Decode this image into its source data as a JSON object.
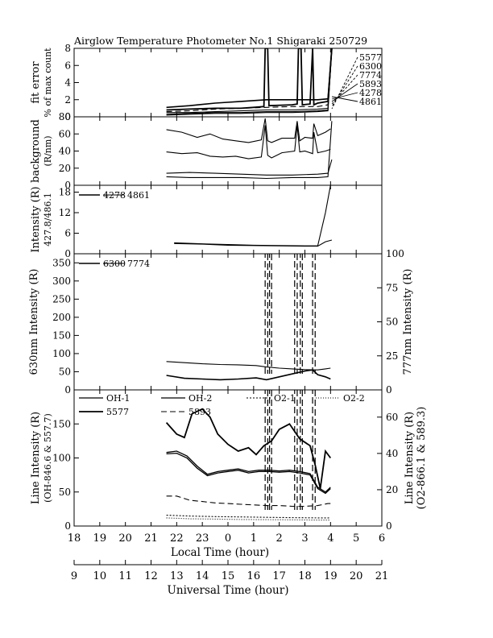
{
  "title": "Airglow Temperature Photometer No.1  Shigaraki  250729",
  "colors": {
    "ink": "#000000",
    "background": "#ffffff"
  },
  "chart_data": [
    {
      "type": "line",
      "id": "fit",
      "ylabel": [
        "fit error",
        "% of max count"
      ],
      "ylim": [
        0,
        8
      ],
      "yticks": [
        0,
        2,
        4,
        6,
        8
      ],
      "legend": [
        "5577",
        "6300",
        "7774",
        "5893",
        "4278",
        "4861"
      ],
      "series": [
        {
          "name": "5577",
          "x": [
            12.6,
            13.5,
            14.5,
            15.5,
            16,
            16.4,
            16.45,
            16.55,
            16.6,
            17.5,
            17.7,
            17.75,
            17.85,
            17.9,
            18.2,
            18.3,
            18.35,
            18.5,
            18.9,
            19.05
          ],
          "y": [
            0.8,
            0.9,
            1.0,
            1.0,
            1.1,
            1.2,
            8,
            8,
            1.3,
            1.4,
            1.5,
            8,
            8,
            1.4,
            1.5,
            8,
            1.4,
            1.6,
            1.8,
            8
          ]
        },
        {
          "name": "6300",
          "x": [
            12.6,
            13.5,
            14.5,
            15.5,
            16.5,
            17.5,
            18.5,
            18.9,
            19.05
          ],
          "y": [
            0.3,
            0.4,
            0.5,
            0.5,
            0.6,
            0.6,
            0.7,
            0.8,
            8
          ]
        },
        {
          "name": "7774",
          "x": [
            12.6,
            13.5,
            14.5,
            15.5,
            16.5,
            17.5,
            18.5,
            18.9,
            19.05
          ],
          "y": [
            1.1,
            1.3,
            1.6,
            1.8,
            2.0,
            2.0,
            2.0,
            2.1,
            8
          ]
        },
        {
          "name": "5893",
          "x": [
            12.6,
            13.5,
            14.5,
            15.5,
            16.5,
            17.5,
            18.5,
            18.9,
            19.05
          ],
          "y": [
            0.6,
            0.7,
            0.9,
            1.0,
            1.1,
            1.2,
            1.2,
            1.4,
            8
          ]
        },
        {
          "name": "4278",
          "x": [
            12.6,
            13.5,
            14.5,
            15.5,
            16.5,
            17.5,
            18.5,
            18.9,
            19.05
          ],
          "y": [
            0.2,
            0.3,
            0.4,
            0.4,
            0.5,
            0.5,
            0.6,
            0.7,
            8
          ]
        },
        {
          "name": "4861",
          "x": [
            12.6,
            13.5,
            14.5,
            15.5,
            16.5,
            17.5,
            18.5,
            18.9,
            19.05
          ],
          "y": [
            0.5,
            0.5,
            0.6,
            0.7,
            0.8,
            0.8,
            0.9,
            1.0,
            8
          ]
        }
      ]
    },
    {
      "type": "line",
      "id": "background",
      "ylabel": [
        "background",
        "(R/nm)"
      ],
      "ylim": [
        0,
        80
      ],
      "yticks": [
        0,
        20,
        40,
        60,
        80
      ],
      "series": [
        {
          "x": [
            12.6,
            13.2,
            13.8,
            14.3,
            14.8,
            15.3,
            15.8,
            16.3,
            16.45,
            16.55,
            16.7,
            17.1,
            17.6,
            17.7,
            17.8,
            18.0,
            18.3,
            18.35,
            18.5,
            18.8,
            19.0
          ],
          "y": [
            65,
            62,
            56,
            60,
            54,
            52,
            50,
            53,
            78,
            52,
            50,
            55,
            55,
            75,
            52,
            56,
            55,
            72,
            58,
            62,
            66
          ]
        },
        {
          "x": [
            12.6,
            13.2,
            13.8,
            14.3,
            14.8,
            15.3,
            15.8,
            16.3,
            16.45,
            16.55,
            16.7,
            17.1,
            17.6,
            17.7,
            17.8,
            18.0,
            18.3,
            18.35,
            18.5,
            18.8,
            19.0
          ],
          "y": [
            39,
            37,
            38,
            34,
            33,
            34,
            31,
            33,
            70,
            35,
            32,
            38,
            40,
            70,
            39,
            40,
            37,
            62,
            38,
            40,
            42
          ]
        },
        {
          "x": [
            12.6,
            13.5,
            14.5,
            15.5,
            16.5,
            17.5,
            18.5,
            18.9,
            19.05
          ],
          "y": [
            14,
            15,
            14,
            13,
            12,
            12,
            13,
            14,
            30
          ]
        },
        {
          "x": [
            12.6,
            13.5,
            14.5,
            15.5,
            16.5,
            17.5,
            18.5,
            18.9,
            19.05
          ],
          "y": [
            10,
            9,
            9,
            9,
            8,
            9,
            9,
            10,
            75
          ]
        }
      ]
    },
    {
      "type": "line",
      "id": "intensity-blue",
      "ylabel": [
        "Intensity (R)",
        "427.8/486.1"
      ],
      "ylim": [
        0,
        20
      ],
      "yticks": [
        0,
        6,
        12,
        18
      ],
      "legend": [
        "4278",
        "4861"
      ],
      "series": [
        {
          "name": "4278",
          "x": [
            12.9,
            14.0,
            15.0,
            16.0,
            17.0,
            18.0,
            18.5,
            18.8,
            19.05
          ],
          "y": [
            3.0,
            2.8,
            2.5,
            2.4,
            2.3,
            2.2,
            2.2,
            3.5,
            4.0
          ]
        },
        {
          "name": "4861",
          "x": [
            12.9,
            14.0,
            15.0,
            16.0,
            17.0,
            18.0,
            18.5,
            18.8,
            19.0
          ],
          "y": [
            3.2,
            2.9,
            2.7,
            2.5,
            2.4,
            2.3,
            2.3,
            12.0,
            20
          ]
        }
      ]
    },
    {
      "type": "line",
      "id": "intensity-red",
      "ylabel": "630nm Intensity (R)",
      "ylabel_right": "777nm Intensity (R)",
      "ylim": [
        0,
        375
      ],
      "ylim_right": [
        0,
        100
      ],
      "yticks": [
        0,
        50,
        100,
        150,
        200,
        250,
        300,
        350
      ],
      "yticks_right": [
        0,
        25,
        50,
        75,
        100
      ],
      "legend": [
        "6300",
        "7774"
      ],
      "series": [
        {
          "name": "6300",
          "x": [
            12.6,
            13.3,
            14.0,
            14.7,
            15.4,
            16.1,
            16.5,
            17.0,
            17.5,
            18.0,
            18.5,
            18.8,
            19.0
          ],
          "y": [
            78,
            75,
            72,
            70,
            69,
            67,
            63,
            60,
            58,
            56,
            55,
            58,
            60
          ]
        },
        {
          "name": "7774",
          "x": [
            12.6,
            13.3,
            14.0,
            14.7,
            15.4,
            16.1,
            16.5,
            17.0,
            17.5,
            18.0,
            18.3,
            18.5,
            18.8,
            19.0
          ],
          "y": [
            40,
            32,
            30,
            28,
            30,
            33,
            28,
            36,
            44,
            52,
            55,
            42,
            36,
            30
          ]
        }
      ],
      "spikes": [
        [
          16.45,
          16.55
        ],
        [
          16.62,
          16.7
        ],
        [
          17.6,
          17.7
        ],
        [
          17.82,
          17.9
        ],
        [
          18.3,
          18.4
        ]
      ]
    },
    {
      "type": "line",
      "id": "line-intensity",
      "ylabel": [
        "Line Intensity (R)",
        "(OH-846.6 & 557.7)"
      ],
      "ylabel_right": [
        "Line Intensity (R)",
        "(O2-866.1 & 589.3)"
      ],
      "ylim": [
        0,
        200
      ],
      "ylim_right": [
        0,
        75
      ],
      "yticks": [
        0,
        50,
        100,
        150
      ],
      "yticks_right": [
        0,
        20,
        40,
        60
      ],
      "legend": [
        "OH-1",
        "OH-2",
        "O2-1",
        "O2-2",
        "5577",
        "5893"
      ],
      "series": [
        {
          "name": "OH-1",
          "axis": "left",
          "x": [
            12.6,
            13.0,
            13.4,
            13.8,
            14.2,
            14.6,
            15.0,
            15.4,
            15.8,
            16.2,
            16.6,
            17.0,
            17.4,
            17.8,
            18.2,
            18.5,
            18.8,
            19.0
          ],
          "y": [
            106,
            107,
            100,
            85,
            74,
            78,
            80,
            82,
            78,
            80,
            80,
            79,
            80,
            78,
            75,
            55,
            48,
            55
          ]
        },
        {
          "name": "OH-2",
          "axis": "left",
          "x": [
            12.6,
            13.0,
            13.4,
            13.8,
            14.2,
            14.6,
            15.0,
            15.4,
            15.8,
            16.2,
            16.6,
            17.0,
            17.4,
            17.8,
            18.2,
            18.5,
            18.8,
            19.0
          ],
          "y": [
            108,
            110,
            103,
            88,
            76,
            80,
            82,
            84,
            80,
            82,
            82,
            81,
            82,
            80,
            77,
            57,
            50,
            57
          ]
        },
        {
          "name": "5577",
          "axis": "left",
          "x": [
            12.6,
            13.0,
            13.3,
            13.6,
            14.0,
            14.3,
            14.6,
            15.0,
            15.4,
            15.8,
            16.1,
            16.4,
            16.7,
            17.0,
            17.4,
            17.8,
            18.2,
            18.4,
            18.6,
            18.8,
            19.0
          ],
          "y": [
            152,
            135,
            130,
            165,
            172,
            160,
            135,
            120,
            110,
            115,
            105,
            118,
            125,
            142,
            150,
            128,
            118,
            90,
            55,
            110,
            100
          ]
        },
        {
          "name": "5893",
          "axis": "left",
          "x": [
            12.6,
            13.0,
            13.5,
            14.0,
            14.5,
            15.0,
            15.5,
            16.0,
            16.5,
            17.0,
            17.5,
            18.0,
            18.5,
            18.9,
            19.0
          ],
          "y": [
            44,
            44,
            38,
            36,
            34,
            33,
            32,
            31,
            30,
            30,
            29,
            29,
            30,
            33,
            33
          ]
        },
        {
          "name": "O2-1",
          "axis": "right",
          "x": [
            12.6,
            13.5,
            14.5,
            15.5,
            16.5,
            17.5,
            18.5,
            19.0
          ],
          "y": [
            6.0,
            5.5,
            5.2,
            5.0,
            4.8,
            4.6,
            4.5,
            4.5
          ]
        },
        {
          "name": "O2-2",
          "axis": "right",
          "x": [
            12.6,
            13.5,
            14.5,
            15.5,
            16.5,
            17.5,
            18.5,
            19.0
          ],
          "y": [
            4.5,
            4.0,
            3.8,
            3.6,
            3.5,
            3.4,
            3.3,
            3.3
          ]
        }
      ],
      "spikes": [
        [
          16.45,
          16.55
        ],
        [
          16.62,
          16.7
        ],
        [
          17.6,
          17.7
        ],
        [
          17.82,
          17.9
        ],
        [
          18.3,
          18.4
        ]
      ]
    }
  ],
  "x_axis": {
    "range": [
      9,
      21
    ],
    "local_label": "Local Time (hour)",
    "local_ticks": [
      "18",
      "19",
      "20",
      "21",
      "22",
      "23",
      "0",
      "1",
      "2",
      "3",
      "4",
      "5",
      "6"
    ],
    "ut_label": "Universal Time (hour)",
    "ut_ticks": [
      "9",
      "10",
      "11",
      "12",
      "13",
      "14",
      "15",
      "16",
      "17",
      "18",
      "19",
      "20",
      "21"
    ]
  }
}
